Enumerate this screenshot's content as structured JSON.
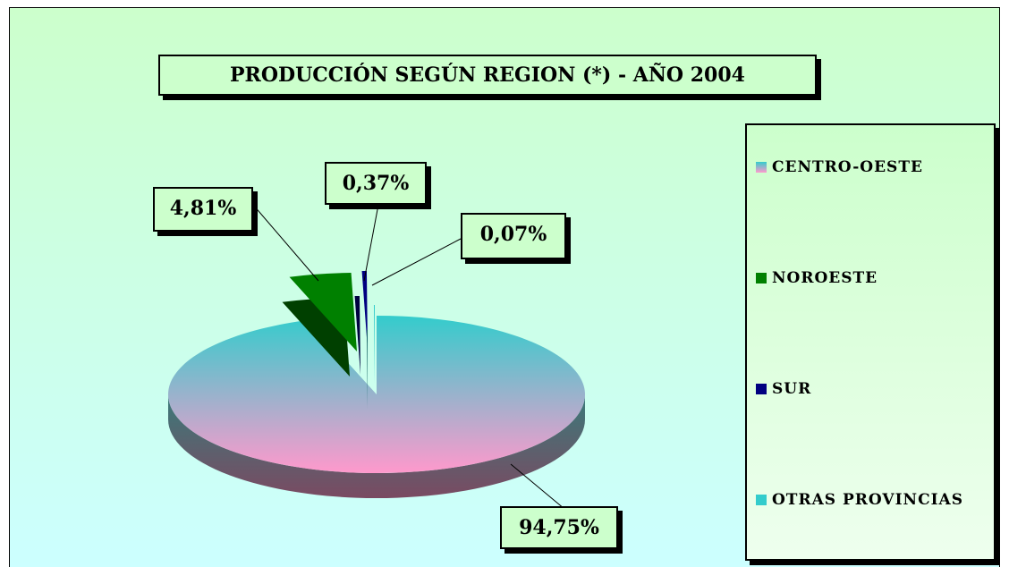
{
  "chart_data": {
    "type": "pie",
    "title": "PRODUCCIÓN SEGÚN REGION (*) - AÑO 2004",
    "categories": [
      "CENTRO-OESTE",
      "NOROESTE",
      "SUR",
      "OTRAS PROVINCIAS"
    ],
    "values": [
      94.75,
      4.81,
      0.37,
      0.07
    ],
    "value_labels": [
      "94,75%",
      "4,81%",
      "0,37%",
      "0,07%"
    ],
    "colors": [
      "#ff99cc",
      "#008000",
      "#000080",
      "#33cccc"
    ],
    "legend": "right"
  }
}
